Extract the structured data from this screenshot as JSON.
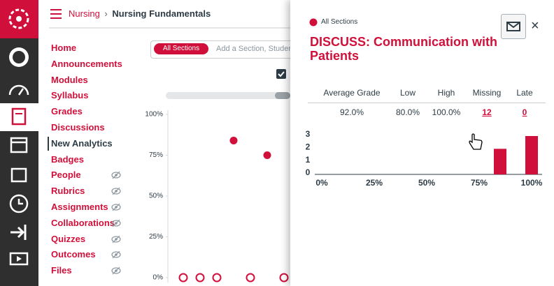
{
  "breadcrumb": {
    "course": "Nursing",
    "page": "Nursing Fundamentals"
  },
  "nav": [
    {
      "label": "Home"
    },
    {
      "label": "Announcements"
    },
    {
      "label": "Modules"
    },
    {
      "label": "Syllabus"
    },
    {
      "label": "Grades"
    },
    {
      "label": "Discussions"
    },
    {
      "label": "New Analytics",
      "active": true
    },
    {
      "label": "Badges"
    },
    {
      "label": "People",
      "hidden": true
    },
    {
      "label": "Rubrics",
      "hidden": true
    },
    {
      "label": "Assignments",
      "hidden": true
    },
    {
      "label": "Collaborations",
      "hidden": true
    },
    {
      "label": "Quizzes",
      "hidden": true
    },
    {
      "label": "Outcomes",
      "hidden": true
    },
    {
      "label": "Files",
      "hidden": true
    }
  ],
  "filter": {
    "section": "All Sections",
    "placeholder": "Add a Section, Student"
  },
  "chart": {
    "ylim": [
      0,
      100
    ],
    "yticks": [
      {
        "value": 100,
        "label": "100%"
      },
      {
        "value": 75,
        "label": "75%"
      },
      {
        "value": 50,
        "label": "50%"
      },
      {
        "value": 25,
        "label": "25%"
      },
      {
        "value": 0,
        "label": "0%"
      }
    ],
    "scores": [
      0,
      0,
      0,
      84,
      0,
      75,
      0
    ]
  },
  "panel": {
    "section": "All Sections",
    "title": "DISCUSS: Communication with Patients",
    "close": "×",
    "columns": [
      "Average Grade",
      "Low",
      "High",
      "Missing",
      "Late"
    ],
    "row": [
      "92.0%",
      "80.0%",
      "100.0%",
      "12",
      "0"
    ],
    "histogram": {
      "xlim": [
        0,
        100
      ],
      "xticks": [
        {
          "value": 0,
          "label": "0%"
        },
        {
          "value": 25,
          "label": "25%"
        },
        {
          "value": 50,
          "label": "50%"
        },
        {
          "value": 75,
          "label": "75%"
        },
        {
          "value": 100,
          "label": "100%"
        }
      ],
      "ylim": [
        0,
        3
      ],
      "yticks": [
        0,
        1,
        2,
        3
      ],
      "bars": [
        {
          "x": 85,
          "count": 2
        },
        {
          "x": 100,
          "count": 3
        }
      ]
    }
  }
}
